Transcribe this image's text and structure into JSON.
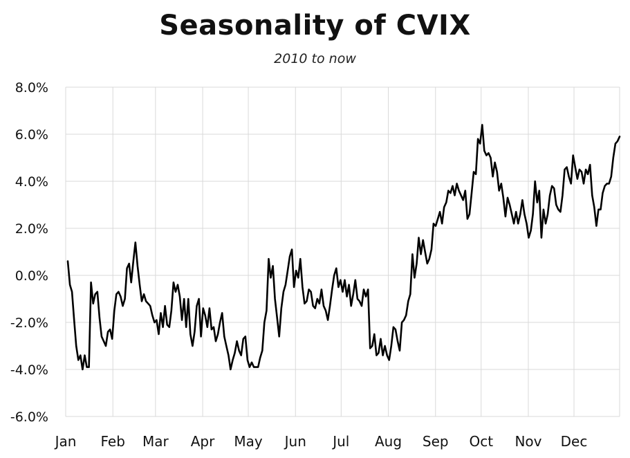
{
  "chart_data": {
    "type": "line",
    "title": "Seasonality of CVIX",
    "subtitle": "2010 to now",
    "xlabel": "",
    "ylabel": "",
    "ylim": [
      -6.0,
      8.0
    ],
    "y_ticks": [
      "8.0%",
      "6.0%",
      "4.0%",
      "2.0%",
      "0.0%",
      "-2.0%",
      "-4.0%",
      "-6.0%"
    ],
    "y_tick_values": [
      8,
      6,
      4,
      2,
      0,
      -2,
      -4,
      -6
    ],
    "x_ticks": [
      "Jan",
      "Feb",
      "Mar",
      "Apr",
      "May",
      "Jun",
      "Jul",
      "Aug",
      "Sep",
      "Oct",
      "Nov",
      "Dec"
    ],
    "xlim_day_of_year": [
      1,
      365
    ],
    "x_tick_day_of_year": [
      1,
      32,
      60,
      91,
      121,
      152,
      182,
      213,
      244,
      274,
      305,
      335
    ],
    "grid": true,
    "line_color": "#000000",
    "series": [
      {
        "values_by_day_of_year": [
          [
            1,
            0.6
          ],
          [
            2,
            -0.4
          ],
          [
            3,
            -0.7
          ],
          [
            4,
            -1.9
          ],
          [
            5,
            -3.0
          ],
          [
            6,
            -3.6
          ],
          [
            7,
            -3.4
          ],
          [
            8,
            -4.0
          ],
          [
            9,
            -3.4
          ],
          [
            10,
            -3.9
          ],
          [
            11,
            -3.9
          ],
          [
            12,
            -0.3
          ],
          [
            13,
            -1.2
          ],
          [
            14,
            -0.8
          ],
          [
            15,
            -0.7
          ],
          [
            16,
            -1.8
          ],
          [
            17,
            -2.6
          ],
          [
            18,
            -2.8
          ],
          [
            19,
            -3.0
          ],
          [
            20,
            -2.4
          ],
          [
            21,
            -2.3
          ],
          [
            22,
            -2.7
          ],
          [
            23,
            -1.5
          ],
          [
            24,
            -0.8
          ],
          [
            25,
            -0.7
          ],
          [
            26,
            -0.9
          ],
          [
            27,
            -1.3
          ],
          [
            28,
            -1.0
          ],
          [
            29,
            0.3
          ],
          [
            30,
            0.5
          ],
          [
            31,
            -0.3
          ],
          [
            32,
            0.6
          ],
          [
            33,
            1.4
          ],
          [
            34,
            0.4
          ],
          [
            35,
            -0.4
          ],
          [
            36,
            -1.1
          ],
          [
            37,
            -0.8
          ],
          [
            38,
            -1.1
          ],
          [
            39,
            -1.2
          ],
          [
            40,
            -1.3
          ],
          [
            41,
            -1.7
          ],
          [
            42,
            -2.0
          ],
          [
            43,
            -1.9
          ],
          [
            44,
            -2.5
          ],
          [
            45,
            -1.6
          ],
          [
            46,
            -2.2
          ],
          [
            47,
            -1.3
          ],
          [
            48,
            -2.1
          ],
          [
            49,
            -2.2
          ],
          [
            50,
            -1.5
          ],
          [
            51,
            -0.3
          ],
          [
            52,
            -0.7
          ],
          [
            53,
            -0.4
          ],
          [
            54,
            -0.9
          ],
          [
            55,
            -1.9
          ],
          [
            56,
            -1.0
          ],
          [
            57,
            -2.2
          ],
          [
            58,
            -1.0
          ],
          [
            59,
            -2.5
          ],
          [
            60,
            -3.0
          ],
          [
            61,
            -2.4
          ],
          [
            62,
            -1.3
          ],
          [
            63,
            -1.0
          ],
          [
            64,
            -2.6
          ],
          [
            65,
            -1.4
          ],
          [
            66,
            -1.7
          ],
          [
            67,
            -2.2
          ],
          [
            68,
            -1.4
          ],
          [
            69,
            -2.3
          ],
          [
            70,
            -2.2
          ],
          [
            71,
            -2.8
          ],
          [
            72,
            -2.5
          ],
          [
            73,
            -2.0
          ],
          [
            74,
            -1.6
          ],
          [
            75,
            -2.6
          ],
          [
            76,
            -3.0
          ],
          [
            77,
            -3.4
          ],
          [
            78,
            -4.0
          ],
          [
            79,
            -3.6
          ],
          [
            80,
            -3.3
          ],
          [
            81,
            -2.8
          ],
          [
            82,
            -3.2
          ],
          [
            83,
            -3.4
          ],
          [
            84,
            -2.7
          ],
          [
            85,
            -2.6
          ],
          [
            86,
            -3.6
          ],
          [
            87,
            -3.9
          ],
          [
            88,
            -3.7
          ],
          [
            89,
            -3.9
          ],
          [
            90,
            -3.9
          ],
          [
            91,
            -3.9
          ],
          [
            92,
            -3.5
          ],
          [
            93,
            -3.2
          ],
          [
            94,
            -2.0
          ],
          [
            95,
            -1.5
          ],
          [
            96,
            0.7
          ],
          [
            97,
            -0.1
          ],
          [
            98,
            0.4
          ],
          [
            99,
            -1.0
          ],
          [
            100,
            -1.8
          ],
          [
            101,
            -2.6
          ],
          [
            102,
            -1.4
          ],
          [
            103,
            -0.7
          ],
          [
            104,
            -0.4
          ],
          [
            105,
            0.2
          ],
          [
            106,
            0.8
          ],
          [
            107,
            1.1
          ],
          [
            108,
            -0.5
          ],
          [
            109,
            0.2
          ],
          [
            110,
            -0.1
          ],
          [
            111,
            0.7
          ],
          [
            112,
            -0.5
          ],
          [
            113,
            -1.2
          ],
          [
            114,
            -1.1
          ],
          [
            115,
            -0.6
          ],
          [
            116,
            -0.7
          ],
          [
            117,
            -1.3
          ],
          [
            118,
            -1.4
          ],
          [
            119,
            -1.0
          ],
          [
            120,
            -1.2
          ],
          [
            121,
            -0.6
          ],
          [
            122,
            -1.3
          ],
          [
            123,
            -1.5
          ],
          [
            124,
            -1.9
          ],
          [
            125,
            -1.3
          ],
          [
            126,
            -0.6
          ],
          [
            127,
            0.0
          ],
          [
            128,
            0.3
          ],
          [
            129,
            -0.5
          ],
          [
            130,
            -0.2
          ],
          [
            131,
            -0.7
          ],
          [
            132,
            -0.2
          ],
          [
            133,
            -0.9
          ],
          [
            134,
            -0.4
          ],
          [
            135,
            -1.3
          ],
          [
            136,
            -0.8
          ],
          [
            137,
            -0.2
          ],
          [
            138,
            -1.0
          ],
          [
            139,
            -1.1
          ],
          [
            140,
            -1.3
          ],
          [
            141,
            -0.6
          ],
          [
            142,
            -0.9
          ],
          [
            143,
            -0.6
          ],
          [
            144,
            -3.1
          ],
          [
            145,
            -3.0
          ],
          [
            146,
            -2.5
          ],
          [
            147,
            -3.4
          ],
          [
            148,
            -3.3
          ],
          [
            149,
            -2.7
          ],
          [
            150,
            -3.4
          ],
          [
            151,
            -3.0
          ],
          [
            152,
            -3.4
          ],
          [
            153,
            -3.6
          ],
          [
            154,
            -3.0
          ],
          [
            155,
            -2.2
          ],
          [
            156,
            -2.3
          ],
          [
            157,
            -2.8
          ],
          [
            158,
            -3.2
          ],
          [
            159,
            -2.0
          ],
          [
            160,
            -1.9
          ],
          [
            161,
            -1.7
          ],
          [
            162,
            -1.1
          ],
          [
            163,
            -0.8
          ],
          [
            164,
            0.9
          ],
          [
            165,
            -0.1
          ],
          [
            166,
            0.5
          ],
          [
            167,
            1.6
          ],
          [
            168,
            0.9
          ],
          [
            169,
            1.5
          ],
          [
            170,
            1.0
          ],
          [
            171,
            0.5
          ],
          [
            172,
            0.7
          ],
          [
            173,
            1.1
          ],
          [
            174,
            2.2
          ],
          [
            175,
            2.1
          ],
          [
            176,
            2.4
          ],
          [
            177,
            2.7
          ],
          [
            178,
            2.2
          ],
          [
            179,
            2.9
          ],
          [
            180,
            3.1
          ],
          [
            181,
            3.6
          ],
          [
            182,
            3.5
          ],
          [
            183,
            3.8
          ],
          [
            184,
            3.4
          ],
          [
            185,
            3.9
          ],
          [
            186,
            3.6
          ],
          [
            187,
            3.4
          ],
          [
            188,
            3.2
          ],
          [
            189,
            3.6
          ],
          [
            190,
            2.4
          ],
          [
            191,
            2.6
          ],
          [
            192,
            3.5
          ],
          [
            193,
            4.4
          ],
          [
            194,
            4.3
          ],
          [
            195,
            5.8
          ],
          [
            196,
            5.6
          ],
          [
            197,
            6.4
          ],
          [
            198,
            5.3
          ],
          [
            199,
            5.1
          ],
          [
            200,
            5.2
          ],
          [
            201,
            5.0
          ],
          [
            202,
            4.2
          ],
          [
            203,
            4.8
          ],
          [
            204,
            4.4
          ],
          [
            205,
            3.6
          ],
          [
            206,
            3.9
          ],
          [
            207,
            3.3
          ],
          [
            208,
            2.5
          ],
          [
            209,
            3.3
          ],
          [
            210,
            3.0
          ],
          [
            211,
            2.6
          ],
          [
            212,
            2.2
          ],
          [
            213,
            2.7
          ],
          [
            214,
            2.2
          ],
          [
            215,
            2.6
          ],
          [
            216,
            3.2
          ],
          [
            217,
            2.6
          ],
          [
            218,
            2.2
          ],
          [
            219,
            1.6
          ],
          [
            220,
            1.9
          ],
          [
            221,
            2.6
          ],
          [
            222,
            4.0
          ],
          [
            223,
            3.1
          ],
          [
            224,
            3.6
          ],
          [
            225,
            1.6
          ],
          [
            226,
            2.8
          ],
          [
            227,
            2.2
          ],
          [
            228,
            2.6
          ],
          [
            229,
            3.4
          ],
          [
            230,
            3.8
          ],
          [
            231,
            3.7
          ],
          [
            232,
            3.0
          ],
          [
            233,
            2.8
          ],
          [
            234,
            2.7
          ],
          [
            235,
            3.4
          ],
          [
            236,
            4.5
          ],
          [
            237,
            4.6
          ],
          [
            238,
            4.2
          ],
          [
            239,
            3.9
          ],
          [
            240,
            5.1
          ],
          [
            241,
            4.6
          ],
          [
            242,
            4.1
          ],
          [
            243,
            4.5
          ],
          [
            244,
            4.4
          ],
          [
            245,
            3.9
          ],
          [
            246,
            4.5
          ],
          [
            247,
            4.3
          ],
          [
            248,
            4.7
          ],
          [
            249,
            3.4
          ],
          [
            250,
            2.9
          ],
          [
            251,
            2.1
          ],
          [
            252,
            2.8
          ],
          [
            253,
            2.8
          ],
          [
            254,
            3.5
          ],
          [
            255,
            3.8
          ],
          [
            256,
            3.9
          ],
          [
            257,
            3.9
          ],
          [
            258,
            4.2
          ],
          [
            259,
            5.0
          ],
          [
            260,
            5.6
          ],
          [
            261,
            5.7
          ],
          [
            262,
            5.9
          ]
        ]
      }
    ]
  }
}
